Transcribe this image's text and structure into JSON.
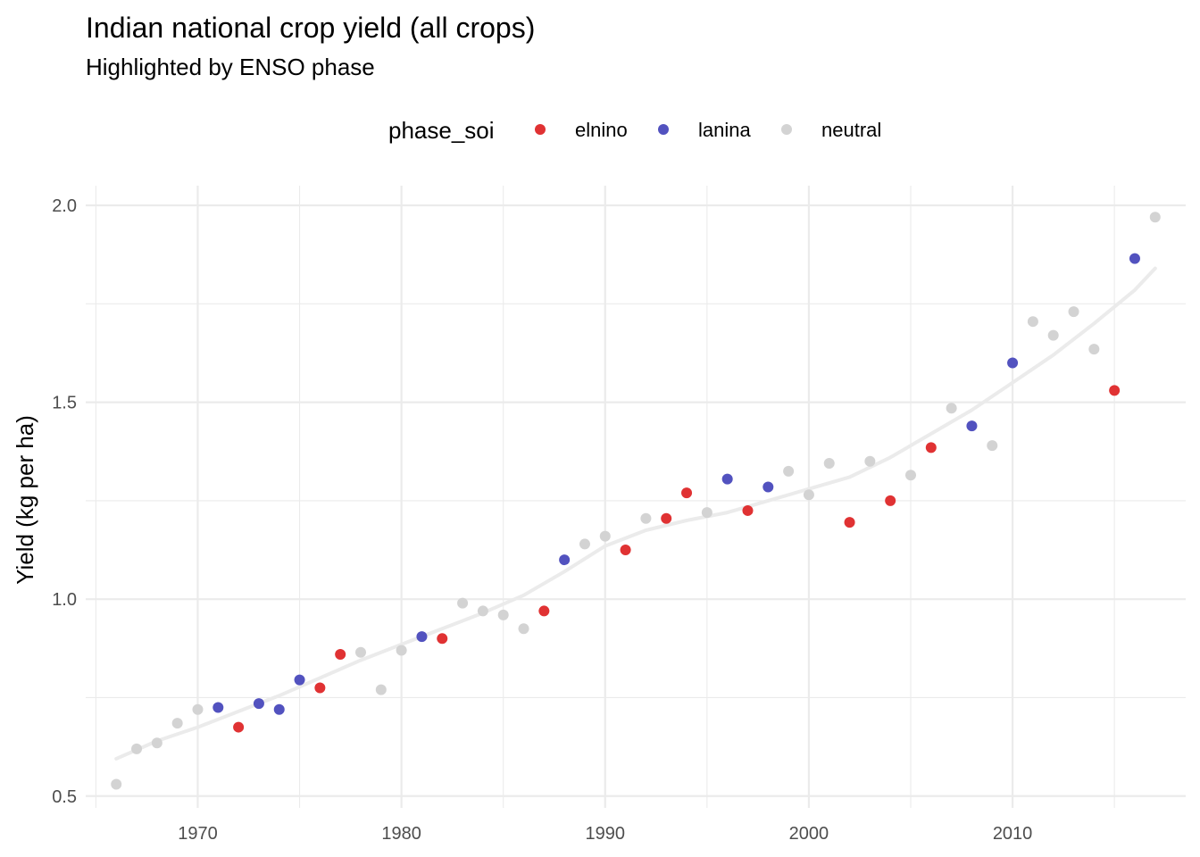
{
  "chart_data": {
    "type": "scatter",
    "title": "Indian national crop yield (all crops)",
    "subtitle": "Highlighted by ENSO phase",
    "xlabel": "",
    "ylabel": "Yield (kg per ha)",
    "xlim": [
      1964.5,
      2018.5
    ],
    "ylim": [
      0.47,
      2.05
    ],
    "xticks": [
      1970,
      1980,
      1990,
      2000,
      2010
    ],
    "yticks": [
      0.5,
      1.0,
      1.5,
      2.0
    ],
    "xtick_labels": [
      "1970",
      "1980",
      "1990",
      "2000",
      "2010"
    ],
    "ytick_labels": [
      "0.5",
      "1.0",
      "1.5",
      "2.0"
    ],
    "grid": true,
    "legend": {
      "title": "phase_soi",
      "position": "top",
      "entries": [
        {
          "label": "elnino",
          "color": "#e03233"
        },
        {
          "label": "lanina",
          "color": "#5252bf"
        },
        {
          "label": "neutral",
          "color": "#d3d3d3"
        }
      ]
    },
    "points": [
      {
        "x": 1966,
        "y": 0.53,
        "phase": "neutral"
      },
      {
        "x": 1967,
        "y": 0.62,
        "phase": "neutral"
      },
      {
        "x": 1968,
        "y": 0.635,
        "phase": "neutral"
      },
      {
        "x": 1969,
        "y": 0.685,
        "phase": "neutral"
      },
      {
        "x": 1970,
        "y": 0.72,
        "phase": "neutral"
      },
      {
        "x": 1971,
        "y": 0.725,
        "phase": "lanina"
      },
      {
        "x": 1972,
        "y": 0.675,
        "phase": "elnino"
      },
      {
        "x": 1973,
        "y": 0.735,
        "phase": "lanina"
      },
      {
        "x": 1974,
        "y": 0.72,
        "phase": "lanina"
      },
      {
        "x": 1975,
        "y": 0.795,
        "phase": "lanina"
      },
      {
        "x": 1976,
        "y": 0.775,
        "phase": "elnino"
      },
      {
        "x": 1977,
        "y": 0.86,
        "phase": "elnino"
      },
      {
        "x": 1978,
        "y": 0.865,
        "phase": "neutral"
      },
      {
        "x": 1979,
        "y": 0.77,
        "phase": "neutral"
      },
      {
        "x": 1980,
        "y": 0.87,
        "phase": "neutral"
      },
      {
        "x": 1981,
        "y": 0.905,
        "phase": "lanina"
      },
      {
        "x": 1982,
        "y": 0.9,
        "phase": "elnino"
      },
      {
        "x": 1983,
        "y": 0.99,
        "phase": "neutral"
      },
      {
        "x": 1984,
        "y": 0.97,
        "phase": "neutral"
      },
      {
        "x": 1985,
        "y": 0.96,
        "phase": "neutral"
      },
      {
        "x": 1986,
        "y": 0.925,
        "phase": "neutral"
      },
      {
        "x": 1987,
        "y": 0.97,
        "phase": "elnino"
      },
      {
        "x": 1988,
        "y": 1.1,
        "phase": "lanina"
      },
      {
        "x": 1989,
        "y": 1.14,
        "phase": "neutral"
      },
      {
        "x": 1990,
        "y": 1.16,
        "phase": "neutral"
      },
      {
        "x": 1991,
        "y": 1.125,
        "phase": "elnino"
      },
      {
        "x": 1992,
        "y": 1.205,
        "phase": "neutral"
      },
      {
        "x": 1993,
        "y": 1.205,
        "phase": "elnino"
      },
      {
        "x": 1994,
        "y": 1.27,
        "phase": "elnino"
      },
      {
        "x": 1995,
        "y": 1.22,
        "phase": "neutral"
      },
      {
        "x": 1996,
        "y": 1.305,
        "phase": "lanina"
      },
      {
        "x": 1997,
        "y": 1.225,
        "phase": "elnino"
      },
      {
        "x": 1998,
        "y": 1.285,
        "phase": "lanina"
      },
      {
        "x": 1999,
        "y": 1.325,
        "phase": "neutral"
      },
      {
        "x": 2000,
        "y": 1.265,
        "phase": "neutral"
      },
      {
        "x": 2001,
        "y": 1.345,
        "phase": "neutral"
      },
      {
        "x": 2002,
        "y": 1.195,
        "phase": "elnino"
      },
      {
        "x": 2003,
        "y": 1.35,
        "phase": "neutral"
      },
      {
        "x": 2004,
        "y": 1.25,
        "phase": "elnino"
      },
      {
        "x": 2005,
        "y": 1.315,
        "phase": "neutral"
      },
      {
        "x": 2006,
        "y": 1.385,
        "phase": "elnino"
      },
      {
        "x": 2007,
        "y": 1.485,
        "phase": "neutral"
      },
      {
        "x": 2008,
        "y": 1.44,
        "phase": "lanina"
      },
      {
        "x": 2009,
        "y": 1.39,
        "phase": "neutral"
      },
      {
        "x": 2010,
        "y": 1.6,
        "phase": "lanina"
      },
      {
        "x": 2011,
        "y": 1.705,
        "phase": "neutral"
      },
      {
        "x": 2012,
        "y": 1.67,
        "phase": "neutral"
      },
      {
        "x": 2013,
        "y": 1.73,
        "phase": "neutral"
      },
      {
        "x": 2014,
        "y": 1.635,
        "phase": "neutral"
      },
      {
        "x": 2015,
        "y": 1.53,
        "phase": "elnino"
      },
      {
        "x": 2016,
        "y": 1.865,
        "phase": "lanina"
      },
      {
        "x": 2017,
        "y": 1.97,
        "phase": "neutral"
      }
    ],
    "smooth_line": {
      "color": "#ebebeb",
      "points": [
        [
          1966,
          0.595
        ],
        [
          1968,
          0.64
        ],
        [
          1970,
          0.675
        ],
        [
          1972,
          0.715
        ],
        [
          1974,
          0.755
        ],
        [
          1976,
          0.8
        ],
        [
          1978,
          0.845
        ],
        [
          1980,
          0.885
        ],
        [
          1982,
          0.925
        ],
        [
          1984,
          0.965
        ],
        [
          1986,
          1.01
        ],
        [
          1988,
          1.07
        ],
        [
          1990,
          1.135
        ],
        [
          1992,
          1.175
        ],
        [
          1994,
          1.2
        ],
        [
          1996,
          1.22
        ],
        [
          1998,
          1.25
        ],
        [
          2000,
          1.28
        ],
        [
          2002,
          1.31
        ],
        [
          2004,
          1.36
        ],
        [
          2006,
          1.42
        ],
        [
          2008,
          1.48
        ],
        [
          2010,
          1.55
        ],
        [
          2012,
          1.62
        ],
        [
          2014,
          1.7
        ],
        [
          2016,
          1.785
        ],
        [
          2017,
          1.84
        ]
      ]
    }
  }
}
